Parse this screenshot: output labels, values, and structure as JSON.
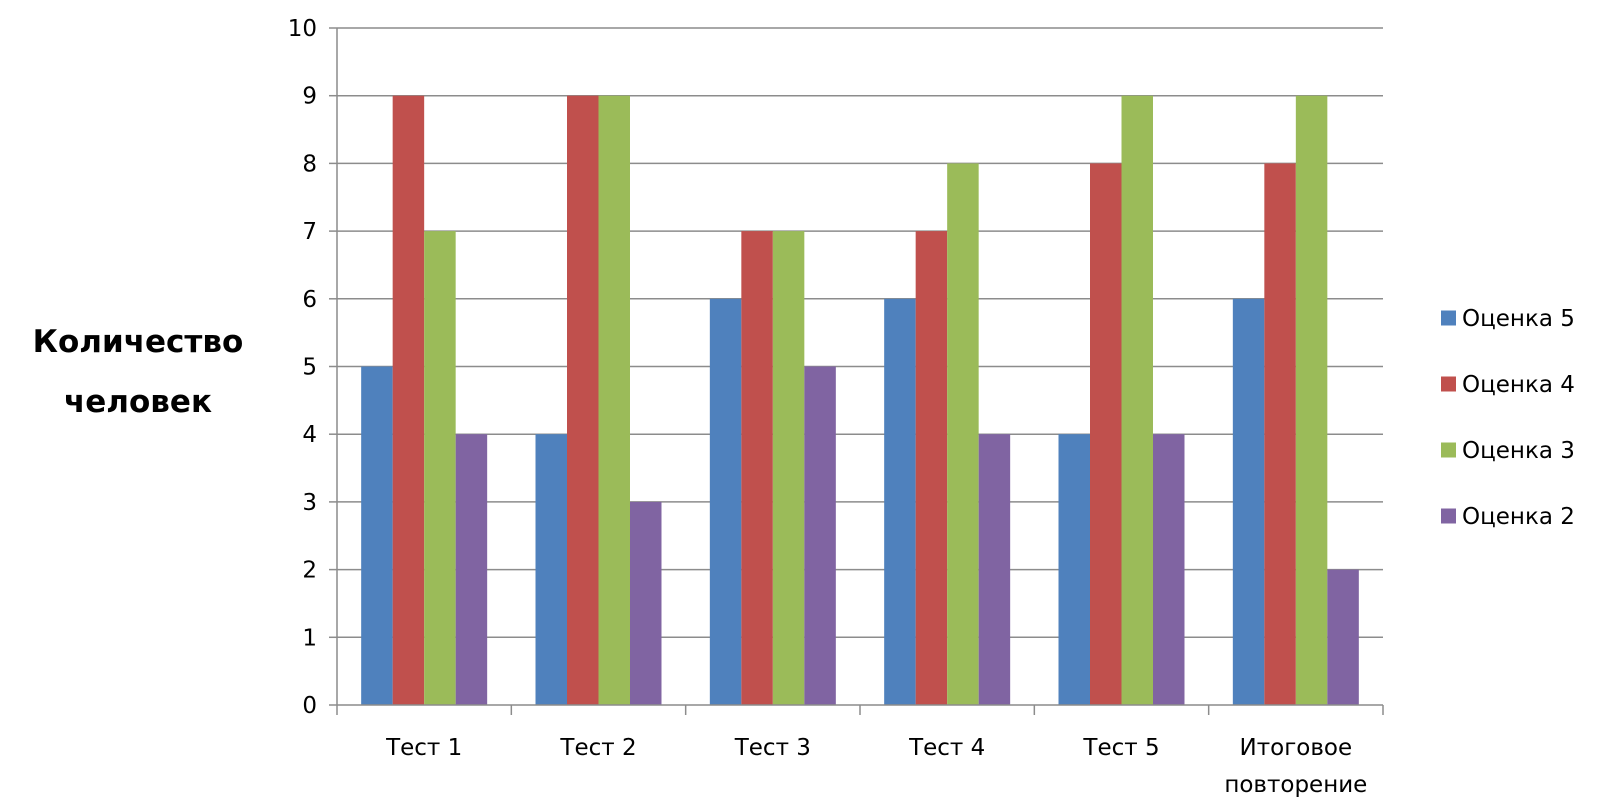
{
  "chart_data": {
    "type": "bar",
    "title": "",
    "xlabel": "",
    "ylabel": [
      "Количество",
      "человек"
    ],
    "categories": [
      [
        "Тест 1"
      ],
      [
        "Тест 2"
      ],
      [
        "Тест 3"
      ],
      [
        "Тест 4"
      ],
      [
        "Тест 5"
      ],
      [
        "Итоговое",
        "повторение"
      ]
    ],
    "series": [
      {
        "name": "Оценка 5",
        "color": "#4F81BD",
        "values": [
          5,
          4,
          6,
          6,
          4,
          6
        ]
      },
      {
        "name": "Оценка 4",
        "color": "#C0504D",
        "values": [
          9,
          9,
          7,
          7,
          8,
          8
        ]
      },
      {
        "name": "Оценка 3",
        "color": "#9BBB59",
        "values": [
          7,
          9,
          7,
          8,
          9,
          9
        ]
      },
      {
        "name": "Оценка 2",
        "color": "#8064A2",
        "values": [
          4,
          3,
          5,
          4,
          4,
          2
        ]
      }
    ],
    "ylim": [
      0,
      10
    ],
    "yticks": [
      0,
      1,
      2,
      3,
      4,
      5,
      6,
      7,
      8,
      9,
      10
    ],
    "grid": true,
    "legend_position": "right"
  }
}
